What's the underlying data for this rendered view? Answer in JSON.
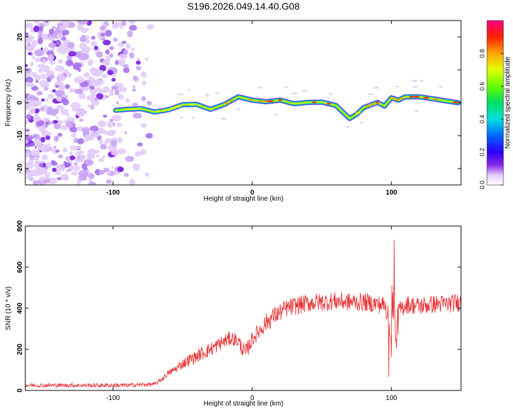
{
  "title": "S196.2026.049.14.40.G08",
  "chart_data": [
    {
      "type": "heatmap",
      "name": "spectrogram",
      "xlabel": "Height of straight line (km)",
      "ylabel": "Frequency (Hz)",
      "xlim": [
        -163,
        150
      ],
      "ylim": [
        -25,
        25
      ],
      "xticks": [
        -100,
        0,
        100
      ],
      "yticks": [
        -20,
        -10,
        0,
        10,
        20
      ],
      "ridge": {
        "x": [
          -98,
          -90,
          -80,
          -70,
          -60,
          -50,
          -40,
          -30,
          -20,
          -10,
          0,
          10,
          20,
          30,
          40,
          50,
          60,
          70,
          75,
          80,
          90,
          95,
          100,
          105,
          110,
          120,
          130,
          140,
          148
        ],
        "freq": [
          -2.3,
          -2,
          -1.8,
          -2.8,
          -2.1,
          -0.6,
          -0.5,
          -2,
          -0.5,
          1.8,
          0.8,
          0.3,
          0.8,
          -0.3,
          0.1,
          0.2,
          -0.8,
          -4.8,
          -3.5,
          -1.5,
          0.1,
          -1,
          1.5,
          0.8,
          1.8,
          1.8,
          1.2,
          0.5,
          0
        ],
        "amplitude": [
          0.55,
          0.6,
          0.65,
          0.65,
          0.7,
          0.75,
          0.8,
          0.85,
          0.8,
          0.85,
          0.9,
          0.9,
          0.95,
          0.9,
          0.9,
          0.95,
          0.9,
          0.85,
          0.8,
          0.85,
          0.9,
          0.85,
          0.8,
          0.9,
          0.95,
          0.95,
          0.9,
          0.9,
          0.95
        ]
      },
      "noise_region_x": [
        -163,
        -75
      ]
    },
    {
      "type": "line",
      "name": "snr",
      "xlabel": "Height of straight line (km)",
      "ylabel": "SNR (10 * v/v)",
      "xlim": [
        -163,
        150
      ],
      "ylim": [
        0,
        800
      ],
      "xticks": [
        -100,
        0,
        100
      ],
      "yticks": [
        0,
        200,
        400,
        600,
        800
      ],
      "color": "#e8383a",
      "series": [
        {
          "name": "SNR",
          "x": [
            -163,
            -150,
            -130,
            -110,
            -90,
            -80,
            -70,
            -65,
            -60,
            -55,
            -50,
            -45,
            -40,
            -35,
            -30,
            -25,
            -20,
            -15,
            -10,
            -5,
            0,
            5,
            10,
            15,
            20,
            25,
            30,
            40,
            50,
            60,
            70,
            80,
            90,
            95,
            98,
            100,
            102,
            103,
            105,
            110,
            120,
            130,
            140,
            150
          ],
          "y": [
            25,
            25,
            25,
            25,
            25,
            28,
            30,
            55,
            85,
            105,
            130,
            150,
            165,
            185,
            200,
            220,
            240,
            255,
            240,
            180,
            250,
            290,
            330,
            360,
            380,
            400,
            410,
            425,
            430,
            435,
            430,
            430,
            420,
            415,
            360,
            180,
            700,
            200,
            380,
            420,
            410,
            420,
            420,
            430
          ],
          "noise_amplitude": [
            10,
            10,
            10,
            10,
            10,
            10,
            10,
            12,
            15,
            20,
            25,
            30,
            30,
            35,
            35,
            35,
            35,
            35,
            35,
            40,
            40,
            40,
            45,
            45,
            45,
            45,
            45,
            45,
            45,
            45,
            45,
            45,
            45,
            45,
            45,
            45,
            45,
            45,
            45,
            45,
            45,
            45,
            45,
            45
          ]
        }
      ]
    },
    {
      "type": "colorbar",
      "name": "colorbar",
      "label": "Normalized spectral amplitude",
      "range": [
        0,
        1
      ],
      "ticks": [
        "0.0",
        "0.2",
        "0.4",
        "0.6",
        "0.8"
      ]
    }
  ]
}
